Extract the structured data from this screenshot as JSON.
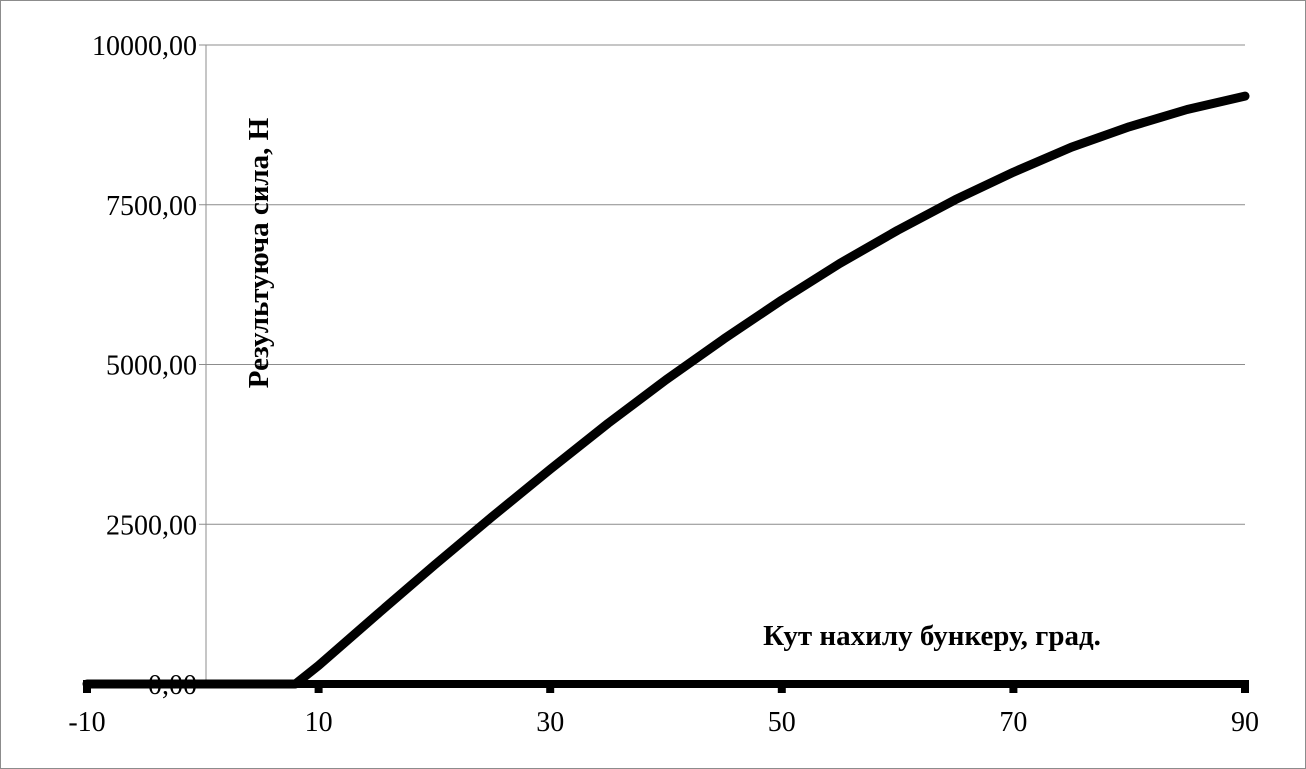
{
  "chart_data": {
    "type": "line",
    "title": "",
    "xlabel": "Кут нахилу бункеру, град.",
    "ylabel": "Результуюча сила, Н",
    "xlim": [
      -10,
      90
    ],
    "ylim": [
      0,
      10000
    ],
    "x_ticks": [
      "-10",
      "10",
      "30",
      "50",
      "70",
      "90"
    ],
    "y_ticks": [
      "0,00",
      "2500,00",
      "5000,00",
      "7500,00",
      "10000,00"
    ],
    "grid": "horizontal",
    "legend": "none",
    "series": [
      {
        "color": "#000000",
        "x": [
          -10,
          8,
          10,
          15,
          20,
          25,
          30,
          35,
          40,
          45,
          50,
          55,
          60,
          65,
          70,
          75,
          80,
          85,
          90
        ],
        "y": [
          0,
          0,
          290,
          1080,
          1860,
          2620,
          3360,
          4080,
          4760,
          5400,
          6010,
          6580,
          7100,
          7580,
          8010,
          8400,
          8720,
          8990,
          9200
        ]
      }
    ]
  }
}
